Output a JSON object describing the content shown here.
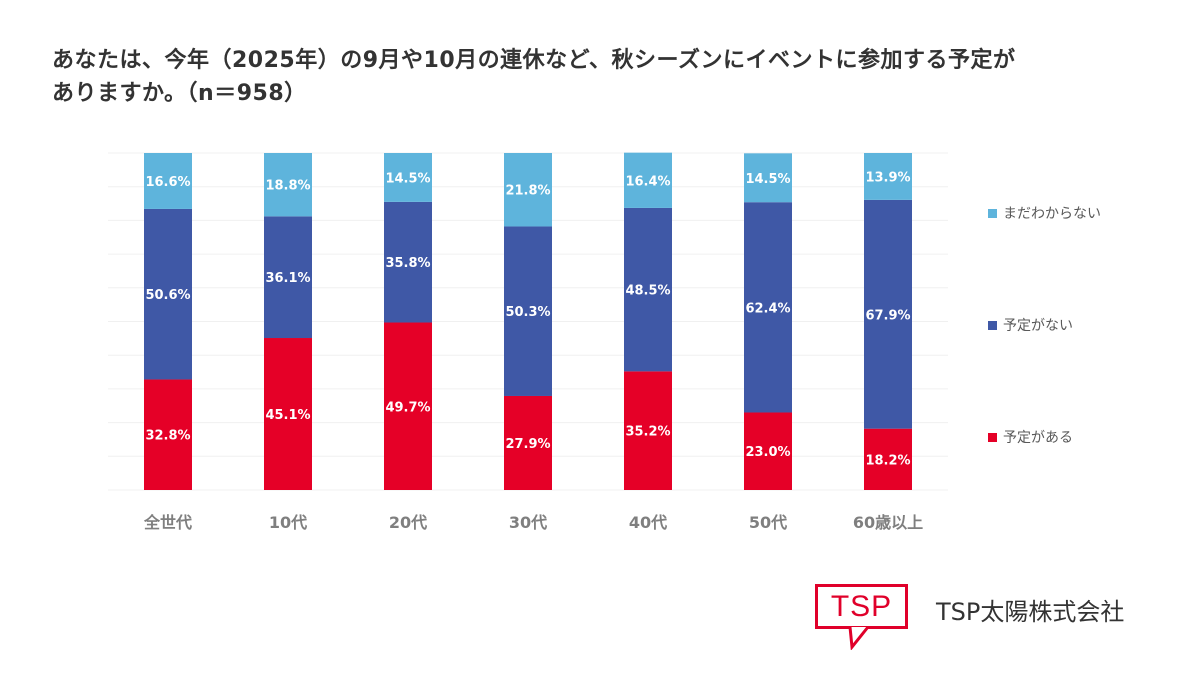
{
  "title_line1": "あなたは、今年（2025年）の9月や10月の連休など、秋シーズンにイベントに参加する予定が",
  "title_line2": "ありますか。（n＝958）",
  "chart_data": {
    "type": "bar",
    "stacked": true,
    "orientation": "vertical",
    "title": "あなたは、今年（2025年）の9月や10月の連休など、秋シーズンにイベントに参加する予定がありますか。（n＝958）",
    "xlabel": "",
    "ylabel": "",
    "ylim": [
      0,
      100
    ],
    "grid": true,
    "legend_position": "right",
    "categories": [
      "全世代",
      "10代",
      "20代",
      "30代",
      "40代",
      "50代",
      "60歳以上"
    ],
    "series": [
      {
        "name": "予定がある",
        "color": "#e50027",
        "values": [
          32.8,
          45.1,
          49.7,
          27.9,
          35.2,
          23.0,
          18.2
        ]
      },
      {
        "name": "予定がない",
        "color": "#3f58a6",
        "values": [
          50.6,
          36.1,
          35.8,
          50.3,
          48.5,
          62.4,
          67.9
        ]
      },
      {
        "name": "まだわからない",
        "color": "#5eb4dc",
        "values": [
          16.6,
          18.8,
          14.5,
          21.8,
          16.4,
          14.5,
          13.9
        ]
      }
    ],
    "data_labels": [
      [
        "32.8%",
        "45.1%",
        "49.7%",
        "27.9%",
        "35.2%",
        "23.0%",
        "18.2%"
      ],
      [
        "50.6%",
        "36.1%",
        "35.8%",
        "50.3%",
        "48.5%",
        "62.4%",
        "67.9%"
      ],
      [
        "16.6%",
        "18.8%",
        "14.5%",
        "21.8%",
        "16.4%",
        "14.5%",
        "13.9%"
      ]
    ]
  },
  "legend": [
    {
      "label": "まだわからない",
      "color": "#5eb4dc"
    },
    {
      "label": "予定がない",
      "color": "#3f58a6"
    },
    {
      "label": "予定がある",
      "color": "#e50027"
    }
  ],
  "logo": {
    "mark": "TSP",
    "company": "TSP太陽株式会社",
    "color": "#e0002a"
  }
}
